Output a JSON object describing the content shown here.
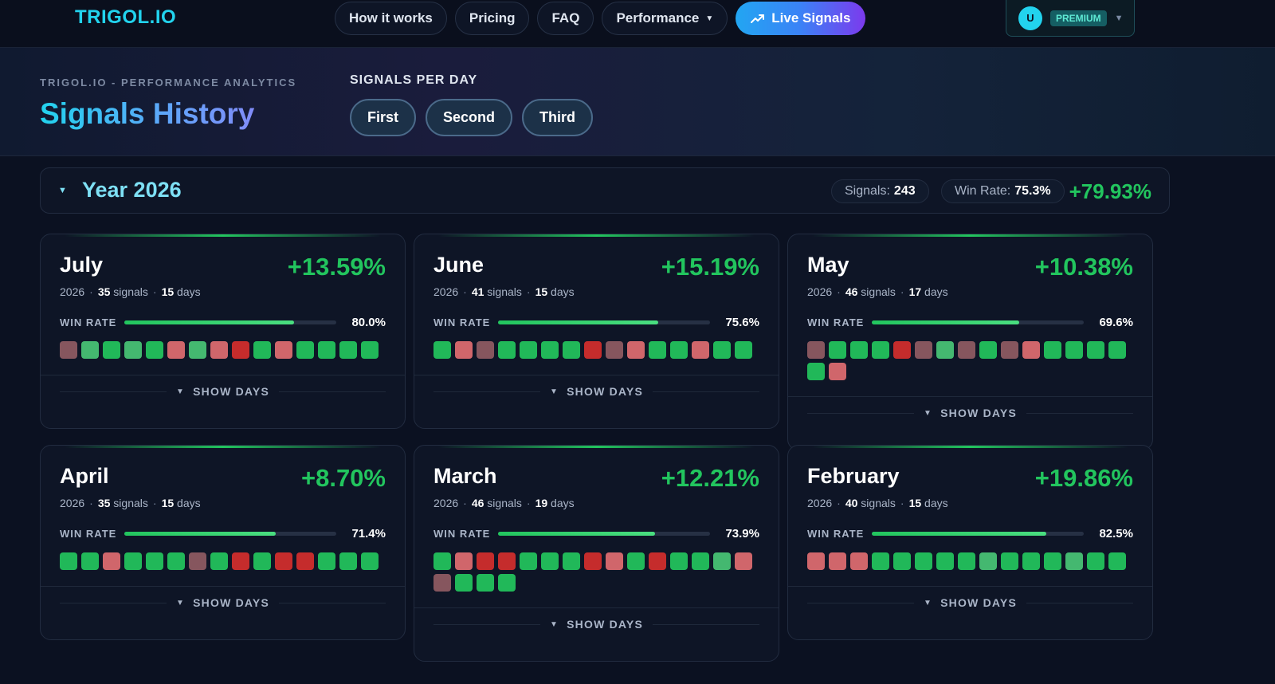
{
  "nav": {
    "logo": "TRIGOL.IO",
    "links": [
      "How it works",
      "Pricing",
      "FAQ"
    ],
    "performance_label": "Performance",
    "live_label": "Live Signals",
    "account": {
      "avatar": "U",
      "badge": "PREMIUM"
    }
  },
  "header": {
    "kicker": "TRIGOL.IO - PERFORMANCE ANALYTICS",
    "title": "Signals History",
    "spd_label": "SIGNALS PER DAY",
    "spd_options": [
      "First",
      "Second",
      "Third"
    ]
  },
  "year": {
    "title": "Year 2026",
    "signals_label": "Signals:",
    "signals": "243",
    "winrate_label": "Win Rate:",
    "winrate": "75.3%",
    "return": "+79.93%"
  },
  "labels": {
    "win_rate": "WIN RATE",
    "show_days": "SHOW DAYS",
    "signals_word": "signals",
    "days_word": "days"
  },
  "months": [
    {
      "name": "July",
      "return": "+13.59%",
      "year": "2026",
      "signals": "35",
      "days": "15",
      "win_rate": "80.0%",
      "win_fraction": 0.8,
      "squares": [
        "br",
        "lg",
        "g",
        "lg",
        "g",
        "lr",
        "lg",
        "lr",
        "r",
        "g",
        "lr",
        "g",
        "g",
        "g",
        "g"
      ]
    },
    {
      "name": "June",
      "return": "+15.19%",
      "year": "2026",
      "signals": "41",
      "days": "15",
      "win_rate": "75.6%",
      "win_fraction": 0.756,
      "squares": [
        "g",
        "lr",
        "br",
        "g",
        "g",
        "g",
        "g",
        "r",
        "br",
        "lr",
        "g",
        "g",
        "lr",
        "g",
        "g"
      ]
    },
    {
      "name": "May",
      "return": "+10.38%",
      "year": "2026",
      "signals": "46",
      "days": "17",
      "win_rate": "69.6%",
      "win_fraction": 0.696,
      "squares": [
        "br",
        "g",
        "g",
        "g",
        "r",
        "br",
        "lg",
        "br",
        "g",
        "br",
        "lr",
        "g",
        "g",
        "g",
        "g",
        "g",
        "lr"
      ]
    },
    {
      "name": "April",
      "return": "+8.70%",
      "year": "2026",
      "signals": "35",
      "days": "15",
      "win_rate": "71.4%",
      "win_fraction": 0.714,
      "squares": [
        "g",
        "g",
        "lr",
        "g",
        "g",
        "g",
        "br",
        "g",
        "r",
        "g",
        "r",
        "r",
        "g",
        "g",
        "g"
      ]
    },
    {
      "name": "March",
      "return": "+12.21%",
      "year": "2026",
      "signals": "46",
      "days": "19",
      "win_rate": "73.9%",
      "win_fraction": 0.739,
      "squares": [
        "g",
        "lr",
        "r",
        "r",
        "g",
        "g",
        "g",
        "r",
        "lr",
        "g",
        "r",
        "g",
        "g",
        "lg",
        "lr",
        "br",
        "g",
        "g",
        "g"
      ]
    },
    {
      "name": "February",
      "return": "+19.86%",
      "year": "2026",
      "signals": "40",
      "days": "15",
      "win_rate": "82.5%",
      "win_fraction": 0.825,
      "squares": [
        "lr",
        "lr",
        "lr",
        "g",
        "g",
        "g",
        "g",
        "g",
        "lg",
        "g",
        "g",
        "g",
        "lg",
        "g",
        "g"
      ]
    }
  ],
  "colors": {
    "accent": "#22d3ee",
    "positive": "#22c55e",
    "negative": "#c52c2c"
  }
}
